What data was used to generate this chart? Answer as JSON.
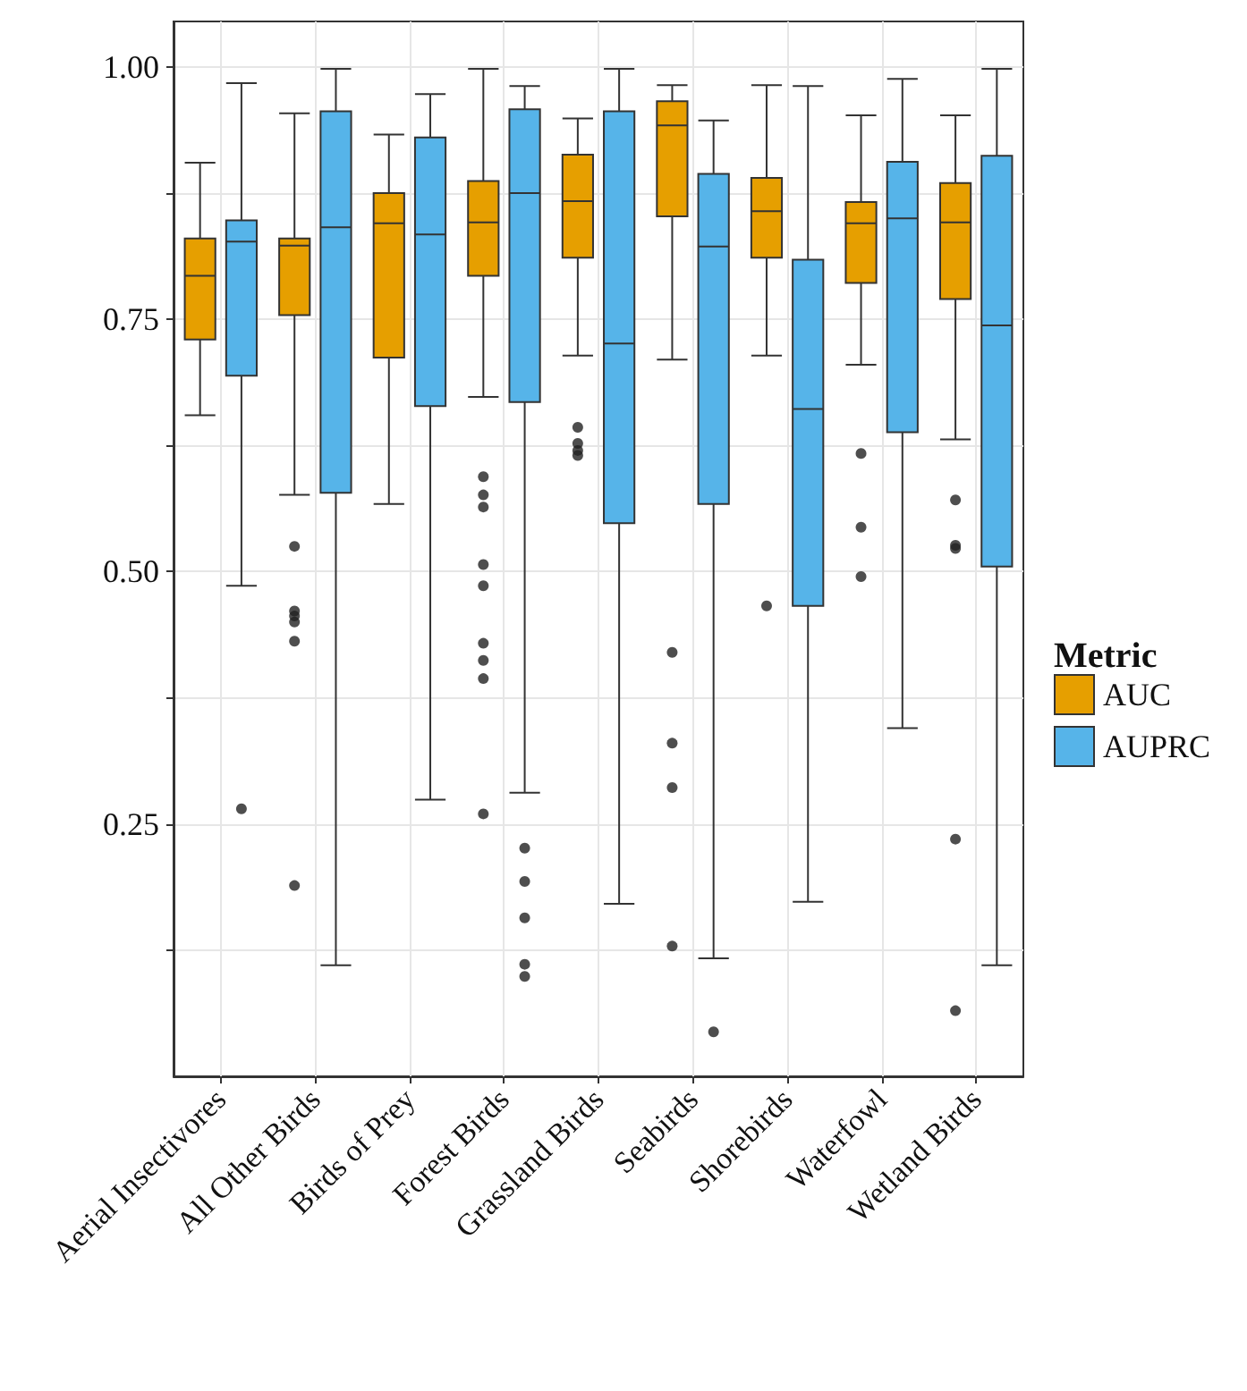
{
  "chart_data": {
    "type": "box",
    "categories": [
      "Aerial Insectivores",
      "All Other Birds",
      "Birds of Prey",
      "Forest Birds",
      "Grassland Birds",
      "Seabirds",
      "Shorebirds",
      "Waterfowl",
      "Wetland Birds"
    ],
    "ylim": [
      0,
      1.045
    ],
    "yticks": [
      {
        "value": 0.125,
        "label": null
      },
      {
        "value": 0.25,
        "label": "0.25"
      },
      {
        "value": 0.375,
        "label": null
      },
      {
        "value": 0.5,
        "label": "0.50"
      },
      {
        "value": 0.625,
        "label": null
      },
      {
        "value": 0.75,
        "label": "0.75"
      },
      {
        "value": 0.875,
        "label": null
      },
      {
        "value": 1,
        "label": "1.00"
      }
    ],
    "grid": true,
    "legend": "right",
    "legend_title": "Metric",
    "series": [
      {
        "name": "AUC",
        "color": "#e69f00",
        "boxes": [
          {
            "low": 0.655,
            "q1": 0.73,
            "median": 0.793,
            "q3": 0.83,
            "high": 0.905
          },
          {
            "low": 0.576,
            "q1": 0.754,
            "median": 0.823,
            "q3": 0.83,
            "high": 0.954,
            "outliers": [
              0.525,
              0.461,
              0.456,
              0.45,
              0.431,
              0.189
            ]
          },
          {
            "low": 0.567,
            "q1": 0.712,
            "median": 0.845,
            "q3": 0.875,
            "high": 0.933
          },
          {
            "low": 0.673,
            "q1": 0.793,
            "median": 0.846,
            "q3": 0.887,
            "high": 0.998,
            "outliers": [
              0.594,
              0.576,
              0.564,
              0.507,
              0.486,
              0.429,
              0.412,
              0.394,
              0.26
            ]
          },
          {
            "low": 0.714,
            "q1": 0.811,
            "median": 0.867,
            "q3": 0.913,
            "high": 0.949,
            "outliers": [
              0.643,
              0.627,
              0.62,
              0.615
            ]
          },
          {
            "low": 0.71,
            "q1": 0.852,
            "median": 0.942,
            "q3": 0.966,
            "high": 0.982,
            "outliers": [
              0.42,
              0.33,
              0.286,
              0.129
            ]
          },
          {
            "low": 0.714,
            "q1": 0.811,
            "median": 0.857,
            "q3": 0.89,
            "high": 0.982,
            "outliers": [
              0.466
            ]
          },
          {
            "low": 0.705,
            "q1": 0.786,
            "median": 0.845,
            "q3": 0.866,
            "high": 0.952,
            "outliers": [
              0.617,
              0.544,
              0.495
            ]
          },
          {
            "low": 0.631,
            "q1": 0.77,
            "median": 0.846,
            "q3": 0.885,
            "high": 0.952,
            "outliers": [
              0.571,
              0.526,
              0.523,
              0.235,
              0.065
            ]
          }
        ]
      },
      {
        "name": "AUPRC",
        "color": "#56b4e9",
        "boxes": [
          {
            "low": 0.486,
            "q1": 0.694,
            "median": 0.827,
            "q3": 0.848,
            "high": 0.984,
            "outliers": [
              0.265
            ]
          },
          {
            "low": 0.11,
            "q1": 0.578,
            "median": 0.841,
            "q3": 0.956,
            "high": 0.998
          },
          {
            "low": 0.274,
            "q1": 0.664,
            "median": 0.834,
            "q3": 0.93,
            "high": 0.973
          },
          {
            "low": 0.281,
            "q1": 0.668,
            "median": 0.875,
            "q3": 0.958,
            "high": 0.981,
            "outliers": [
              0.226,
              0.193,
              0.157,
              0.111,
              0.099
            ]
          },
          {
            "low": 0.171,
            "q1": 0.548,
            "median": 0.726,
            "q3": 0.956,
            "high": 0.998
          },
          {
            "low": 0.117,
            "q1": 0.567,
            "median": 0.822,
            "q3": 0.894,
            "high": 0.947,
            "outliers": [
              0.044
            ]
          },
          {
            "low": 0.173,
            "q1": 0.466,
            "median": 0.661,
            "q3": 0.809,
            "high": 0.981
          },
          {
            "low": 0.345,
            "q1": 0.638,
            "median": 0.85,
            "q3": 0.906,
            "high": 0.988
          },
          {
            "low": 0.11,
            "q1": 0.505,
            "median": 0.744,
            "q3": 0.912,
            "high": 0.998
          }
        ]
      }
    ]
  }
}
